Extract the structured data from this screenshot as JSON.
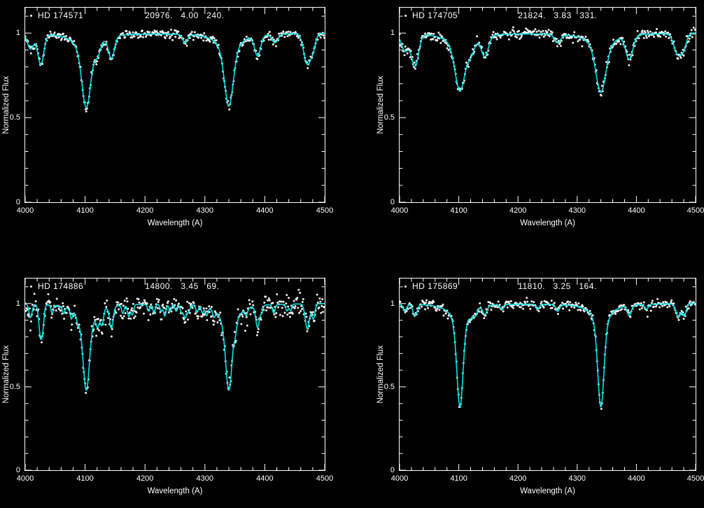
{
  "page": {
    "background": "#000000",
    "accent": "#00e4e4",
    "foreground": "#ffffff"
  },
  "chart_data": [
    {
      "type": "scatter",
      "title": "HD 174571",
      "params_text": "20976.   4.00   240.",
      "teff": 20976,
      "logg": 4.0,
      "vsini": 240,
      "xlabel": "Wavelength (A)",
      "ylabel": "Normalized Flux",
      "xlim": [
        4000,
        4500
      ],
      "ylim": [
        0,
        1.15
      ],
      "xticks": [
        4000,
        4100,
        4200,
        4300,
        4400,
        4500
      ],
      "xtick_labels": [
        "4000",
        "4100",
        "4200",
        "4300",
        "4400",
        "4500"
      ],
      "yticks": [
        0,
        0.5,
        1
      ],
      "ytick_labels": [
        "0",
        "0.5",
        "1"
      ],
      "xmajor": 100,
      "xminor": 20,
      "yminor": 0.1,
      "grid": false,
      "series": [
        {
          "name": "observed spectrum",
          "style": "points",
          "color": "#ffffff"
        },
        {
          "name": "model fit",
          "style": "line",
          "color": "#00e4e4"
        }
      ],
      "noise": 0.012,
      "seed": 101,
      "sample_step": 1.2,
      "lines": [
        {
          "c": 4009,
          "d": 0.09,
          "w": 5,
          "t": "g"
        },
        {
          "c": 4026,
          "d": 0.18,
          "w": 5,
          "t": "g"
        },
        {
          "c": 4102,
          "d": 0.28,
          "w": 7,
          "t": "g"
        },
        {
          "c": 4102,
          "d": 0.16,
          "w": 16,
          "t": "l"
        },
        {
          "c": 4121,
          "d": 0.07,
          "w": 5,
          "t": "g"
        },
        {
          "c": 4144,
          "d": 0.13,
          "w": 5,
          "t": "g"
        },
        {
          "c": 4267,
          "d": 0.05,
          "w": 4,
          "t": "g"
        },
        {
          "c": 4340,
          "d": 0.27,
          "w": 7,
          "t": "g"
        },
        {
          "c": 4340,
          "d": 0.16,
          "w": 16,
          "t": "l"
        },
        {
          "c": 4388,
          "d": 0.12,
          "w": 5,
          "t": "g"
        },
        {
          "c": 4417,
          "d": 0.05,
          "w": 5,
          "t": "g"
        },
        {
          "c": 4471,
          "d": 0.18,
          "w": 6,
          "t": "g"
        },
        {
          "c": 4481,
          "d": 0.07,
          "w": 4,
          "t": "g"
        }
      ]
    },
    {
      "type": "scatter",
      "title": "HD 174705",
      "params_text": "21824.   3.83   331.",
      "teff": 21824,
      "logg": 3.83,
      "vsini": 331,
      "xlabel": "Wavelength (A)",
      "ylabel": "Normalized Flux",
      "xlim": [
        4000,
        4500
      ],
      "ylim": [
        0,
        1.15
      ],
      "xticks": [
        4000,
        4100,
        4200,
        4300,
        4400,
        4500
      ],
      "xtick_labels": [
        "4000",
        "4100",
        "4200",
        "4300",
        "4400",
        "4500"
      ],
      "yticks": [
        0,
        0.5,
        1
      ],
      "ytick_labels": [
        "0",
        "0.5",
        "1"
      ],
      "xmajor": 100,
      "xminor": 20,
      "yminor": 0.1,
      "grid": false,
      "series": [
        {
          "name": "observed spectrum",
          "style": "points",
          "color": "#ffffff"
        },
        {
          "name": "model fit",
          "style": "line",
          "color": "#00e4e4"
        }
      ],
      "noise": 0.015,
      "seed": 202,
      "sample_step": 1.2,
      "lines": [
        {
          "c": 4009,
          "d": 0.1,
          "w": 6,
          "t": "g"
        },
        {
          "c": 4026,
          "d": 0.19,
          "w": 6,
          "t": "g"
        },
        {
          "c": 4102,
          "d": 0.21,
          "w": 8,
          "t": "g"
        },
        {
          "c": 4102,
          "d": 0.13,
          "w": 17,
          "t": "l"
        },
        {
          "c": 4121,
          "d": 0.07,
          "w": 6,
          "t": "g"
        },
        {
          "c": 4144,
          "d": 0.12,
          "w": 6,
          "t": "g"
        },
        {
          "c": 4267,
          "d": 0.05,
          "w": 5,
          "t": "g"
        },
        {
          "c": 4340,
          "d": 0.21,
          "w": 8,
          "t": "g"
        },
        {
          "c": 4340,
          "d": 0.14,
          "w": 17,
          "t": "l"
        },
        {
          "c": 4388,
          "d": 0.14,
          "w": 6,
          "t": "g"
        },
        {
          "c": 4471,
          "d": 0.13,
          "w": 7,
          "t": "g"
        },
        {
          "c": 4481,
          "d": 0.05,
          "w": 4,
          "t": "g"
        }
      ]
    },
    {
      "type": "scatter",
      "title": "HD 174886",
      "params_text": "14800.   3.45   69.",
      "teff": 14800,
      "logg": 3.45,
      "vsini": 69,
      "xlabel": "Wavelength (A)",
      "ylabel": "Normalized Flux",
      "xlim": [
        4000,
        4500
      ],
      "ylim": [
        0,
        1.15
      ],
      "xticks": [
        4000,
        4100,
        4200,
        4300,
        4400,
        4500
      ],
      "xtick_labels": [
        "4000",
        "4100",
        "4200",
        "4300",
        "4400",
        "4500"
      ],
      "yticks": [
        0,
        0.5,
        1
      ],
      "ytick_labels": [
        "0",
        "0.5",
        "1"
      ],
      "xmajor": 100,
      "xminor": 20,
      "yminor": 0.1,
      "grid": false,
      "series": [
        {
          "name": "observed spectrum",
          "style": "points",
          "color": "#ffffff"
        },
        {
          "name": "model fit",
          "style": "line",
          "color": "#00e4e4"
        }
      ],
      "noise": 0.028,
      "seed": 303,
      "sample_step": 1.1,
      "lines": [
        {
          "c": 4009,
          "d": 0.08,
          "w": 2.5,
          "t": "g"
        },
        {
          "c": 4026,
          "d": 0.2,
          "w": 3,
          "t": "g"
        },
        {
          "c": 4030,
          "d": 0.06,
          "w": 2,
          "t": "g"
        },
        {
          "c": 4045,
          "d": 0.05,
          "w": 1.8,
          "t": "g"
        },
        {
          "c": 4064,
          "d": 0.04,
          "w": 1.8,
          "t": "g"
        },
        {
          "c": 4077,
          "d": 0.05,
          "w": 1.8,
          "t": "g"
        },
        {
          "c": 4088,
          "d": 0.04,
          "w": 1.8,
          "t": "g"
        },
        {
          "c": 4102,
          "d": 0.34,
          "w": 5,
          "t": "g"
        },
        {
          "c": 4102,
          "d": 0.18,
          "w": 14,
          "t": "l"
        },
        {
          "c": 4121,
          "d": 0.08,
          "w": 2.5,
          "t": "g"
        },
        {
          "c": 4128,
          "d": 0.09,
          "w": 2.5,
          "t": "g"
        },
        {
          "c": 4144,
          "d": 0.13,
          "w": 3,
          "t": "g"
        },
        {
          "c": 4163,
          "d": 0.05,
          "w": 2,
          "t": "g"
        },
        {
          "c": 4173,
          "d": 0.07,
          "w": 2.2,
          "t": "g"
        },
        {
          "c": 4179,
          "d": 0.06,
          "w": 2,
          "t": "g"
        },
        {
          "c": 4206,
          "d": 0.04,
          "w": 2,
          "t": "g"
        },
        {
          "c": 4215,
          "d": 0.05,
          "w": 2,
          "t": "g"
        },
        {
          "c": 4227,
          "d": 0.04,
          "w": 2,
          "t": "g"
        },
        {
          "c": 4233,
          "d": 0.07,
          "w": 2,
          "t": "g"
        },
        {
          "c": 4242,
          "d": 0.04,
          "w": 2,
          "t": "g"
        },
        {
          "c": 4252,
          "d": 0.04,
          "w": 2,
          "t": "g"
        },
        {
          "c": 4261,
          "d": 0.05,
          "w": 2,
          "t": "g"
        },
        {
          "c": 4267,
          "d": 0.08,
          "w": 2.5,
          "t": "g"
        },
        {
          "c": 4273,
          "d": 0.04,
          "w": 2,
          "t": "g"
        },
        {
          "c": 4287,
          "d": 0.04,
          "w": 2,
          "t": "g"
        },
        {
          "c": 4296,
          "d": 0.04,
          "w": 2,
          "t": "g"
        },
        {
          "c": 4303,
          "d": 0.05,
          "w": 2,
          "t": "g"
        },
        {
          "c": 4315,
          "d": 0.04,
          "w": 2,
          "t": "g"
        },
        {
          "c": 4340,
          "d": 0.34,
          "w": 5,
          "t": "g"
        },
        {
          "c": 4340,
          "d": 0.18,
          "w": 14,
          "t": "l"
        },
        {
          "c": 4351,
          "d": 0.06,
          "w": 2.2,
          "t": "g"
        },
        {
          "c": 4369,
          "d": 0.04,
          "w": 2,
          "t": "g"
        },
        {
          "c": 4388,
          "d": 0.13,
          "w": 3,
          "t": "g"
        },
        {
          "c": 4395,
          "d": 0.04,
          "w": 2,
          "t": "g"
        },
        {
          "c": 4415,
          "d": 0.05,
          "w": 2.2,
          "t": "g"
        },
        {
          "c": 4437,
          "d": 0.04,
          "w": 2,
          "t": "g"
        },
        {
          "c": 4443,
          "d": 0.04,
          "w": 2,
          "t": "g"
        },
        {
          "c": 4471,
          "d": 0.15,
          "w": 3.5,
          "t": "g"
        },
        {
          "c": 4481,
          "d": 0.09,
          "w": 2.5,
          "t": "g"
        }
      ]
    },
    {
      "type": "scatter",
      "title": "HD 175869",
      "params_text": "11810.   3.25   164.",
      "teff": 11810,
      "logg": 3.25,
      "vsini": 164,
      "xlabel": "Wavelength (A)",
      "ylabel": "Normalized Flux",
      "xlim": [
        4000,
        4500
      ],
      "ylim": [
        0,
        1.15
      ],
      "xticks": [
        4000,
        4100,
        4200,
        4300,
        4400,
        4500
      ],
      "xtick_labels": [
        "4000",
        "4100",
        "4200",
        "4300",
        "4400",
        "4500"
      ],
      "yticks": [
        0,
        0.5,
        1
      ],
      "ytick_labels": [
        "0",
        "0.5",
        "1"
      ],
      "xmajor": 100,
      "xminor": 20,
      "yminor": 0.1,
      "grid": false,
      "series": [
        {
          "name": "observed spectrum",
          "style": "points",
          "color": "#ffffff"
        },
        {
          "name": "model fit",
          "style": "line",
          "color": "#00e4e4"
        }
      ],
      "noise": 0.013,
      "seed": 404,
      "sample_step": 1.2,
      "lines": [
        {
          "c": 4009,
          "d": 0.04,
          "w": 3,
          "t": "g"
        },
        {
          "c": 4026,
          "d": 0.07,
          "w": 3.5,
          "t": "g"
        },
        {
          "c": 4102,
          "d": 0.44,
          "w": 5,
          "t": "g"
        },
        {
          "c": 4102,
          "d": 0.18,
          "w": 13,
          "t": "l"
        },
        {
          "c": 4121,
          "d": 0.03,
          "w": 3,
          "t": "g"
        },
        {
          "c": 4128,
          "d": 0.04,
          "w": 3,
          "t": "g"
        },
        {
          "c": 4144,
          "d": 0.05,
          "w": 3.5,
          "t": "g"
        },
        {
          "c": 4173,
          "d": 0.03,
          "w": 3,
          "t": "g"
        },
        {
          "c": 4233,
          "d": 0.03,
          "w": 3,
          "t": "g"
        },
        {
          "c": 4267,
          "d": 0.04,
          "w": 3,
          "t": "g"
        },
        {
          "c": 4340,
          "d": 0.44,
          "w": 5,
          "t": "g"
        },
        {
          "c": 4340,
          "d": 0.18,
          "w": 13,
          "t": "l"
        },
        {
          "c": 4388,
          "d": 0.06,
          "w": 3.5,
          "t": "g"
        },
        {
          "c": 4417,
          "d": 0.03,
          "w": 3,
          "t": "g"
        },
        {
          "c": 4471,
          "d": 0.08,
          "w": 4,
          "t": "g"
        },
        {
          "c": 4481,
          "d": 0.07,
          "w": 3,
          "t": "g"
        }
      ]
    }
  ]
}
